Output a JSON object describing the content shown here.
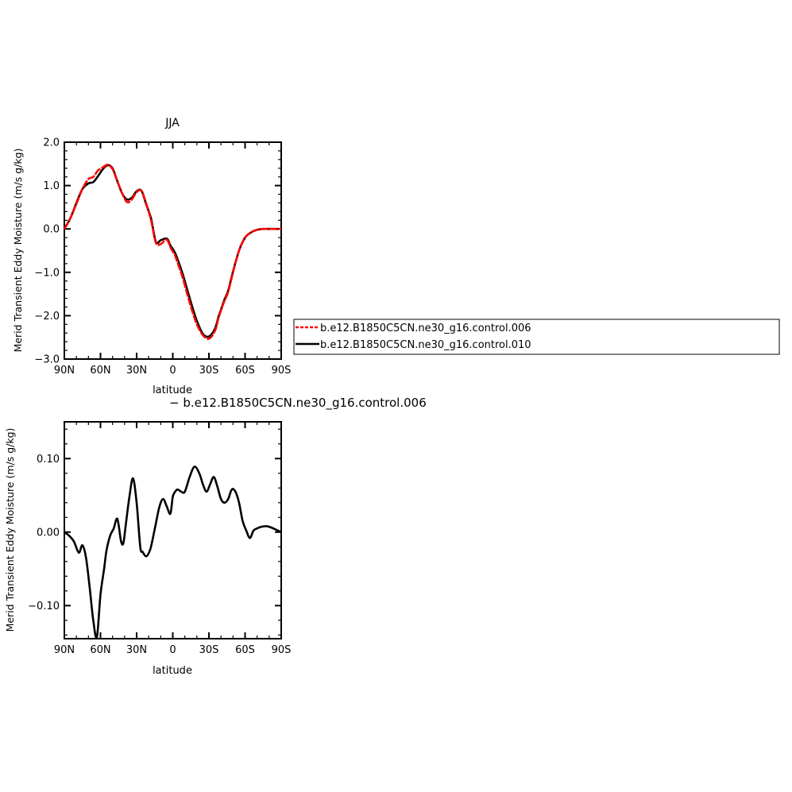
{
  "chart_data": [
    {
      "type": "line",
      "title": "JJA",
      "xlabel": "latitude",
      "ylabel": "Merid Transient Eddy Moisture (m/s g/kg)",
      "xlim": [
        90,
        -90
      ],
      "ylim": [
        -3.0,
        2.0
      ],
      "x_tick_labels": [
        "90N",
        "60N",
        "30N",
        "0",
        "30S",
        "60S",
        "90S"
      ],
      "y_tick_labels": [
        "2.0",
        "1.0",
        "0.0",
        "−1.0",
        "−2.0",
        "−3.0"
      ],
      "y_ticks": [
        2.0,
        1.0,
        0.0,
        -1.0,
        -2.0,
        -3.0
      ],
      "x": [
        90,
        85,
        80,
        75,
        70,
        66,
        62,
        58,
        54,
        50,
        46,
        42,
        38,
        34,
        30,
        26,
        22,
        18,
        14,
        10,
        6,
        4,
        2,
        0,
        -2,
        -4,
        -8,
        -12,
        -16,
        -20,
        -25,
        -30,
        -35,
        -38,
        -41,
        -43,
        -46,
        -50,
        -55,
        -60,
        -65,
        -70,
        -75,
        -80,
        -85,
        -90
      ],
      "series": [
        {
          "name": "b.e12.B1850C5CN.ne30_g16.control.006",
          "color": "#ff0000",
          "dashed": true,
          "values": [
            0.0,
            0.25,
            0.58,
            0.92,
            1.15,
            1.2,
            1.35,
            1.42,
            1.48,
            1.38,
            1.1,
            0.82,
            0.62,
            0.68,
            0.85,
            0.88,
            0.58,
            0.2,
            -0.32,
            -0.35,
            -0.25,
            -0.28,
            -0.42,
            -0.52,
            -0.62,
            -0.78,
            -1.1,
            -1.5,
            -1.88,
            -2.2,
            -2.45,
            -2.53,
            -2.35,
            -2.05,
            -1.8,
            -1.65,
            -1.45,
            -1.0,
            -0.5,
            -0.2,
            -0.08,
            -0.02,
            0.0,
            0.0,
            0.0,
            0.0
          ]
        },
        {
          "name": "b.e12.B1850C5CN.ne30_g16.control.010",
          "color": "#000000",
          "dashed": false,
          "values": [
            0.0,
            0.25,
            0.6,
            0.92,
            1.05,
            1.08,
            1.22,
            1.38,
            1.47,
            1.4,
            1.1,
            0.82,
            0.68,
            0.72,
            0.87,
            0.88,
            0.56,
            0.24,
            -0.3,
            -0.26,
            -0.22,
            -0.25,
            -0.38,
            -0.46,
            -0.56,
            -0.7,
            -1.02,
            -1.4,
            -1.78,
            -2.12,
            -2.42,
            -2.48,
            -2.3,
            -2.02,
            -1.78,
            -1.62,
            -1.42,
            -0.98,
            -0.5,
            -0.2,
            -0.08,
            -0.02,
            0.0,
            0.0,
            0.0,
            0.0
          ]
        }
      ]
    },
    {
      "type": "line",
      "title": "− b.e12.B1850C5CN.ne30_g16.control.006",
      "xlabel": "latitude",
      "ylabel": "Merid Transient Eddy Moisture (m/s g/kg)",
      "xlim": [
        90,
        -90
      ],
      "ylim": [
        -0.145,
        0.15
      ],
      "x_tick_labels": [
        "90N",
        "60N",
        "30N",
        "0",
        "30S",
        "60S",
        "90S"
      ],
      "y_tick_labels": [
        "0.10",
        "0.00",
        "−0.10"
      ],
      "y_ticks": [
        0.1,
        0.0,
        -0.1
      ],
      "x": [
        90,
        86,
        82,
        78,
        75,
        72,
        69,
        66,
        63,
        60,
        57,
        55,
        52,
        49,
        46,
        43,
        41,
        39,
        36,
        33,
        30,
        27,
        25,
        22,
        19,
        17,
        14,
        11,
        8,
        5,
        2,
        0,
        -2,
        -4,
        -7,
        -10,
        -14,
        -18,
        -22,
        -25,
        -28,
        -31,
        -34,
        -37,
        -40,
        -43,
        -46,
        -49,
        -52,
        -55,
        -58,
        -61,
        -64,
        -67,
        -70,
        -73,
        -78,
        -82,
        -86,
        -90
      ],
      "series": [
        {
          "name": "",
          "color": "#000000",
          "dashed": false,
          "values": [
            0.0,
            -0.005,
            -0.013,
            -0.028,
            -0.018,
            -0.035,
            -0.075,
            -0.12,
            -0.143,
            -0.085,
            -0.05,
            -0.025,
            -0.005,
            0.005,
            0.018,
            -0.012,
            -0.015,
            0.01,
            0.048,
            0.073,
            0.04,
            -0.02,
            -0.027,
            -0.033,
            -0.025,
            -0.012,
            0.012,
            0.035,
            0.045,
            0.035,
            0.025,
            0.048,
            0.055,
            0.058,
            0.055,
            0.055,
            0.075,
            0.089,
            0.08,
            0.065,
            0.055,
            0.065,
            0.075,
            0.062,
            0.045,
            0.04,
            0.045,
            0.058,
            0.055,
            0.04,
            0.015,
            0.002,
            -0.008,
            0.002,
            0.005,
            0.007,
            0.008,
            0.006,
            0.003,
            0.0
          ]
        }
      ]
    }
  ],
  "legend": [
    {
      "label": "b.e12.B1850C5CN.ne30_g16.control.006",
      "color": "#ff0000",
      "dashed": true
    },
    {
      "label": "b.e12.B1850C5CN.ne30_g16.control.010",
      "color": "#000000",
      "dashed": false
    }
  ]
}
